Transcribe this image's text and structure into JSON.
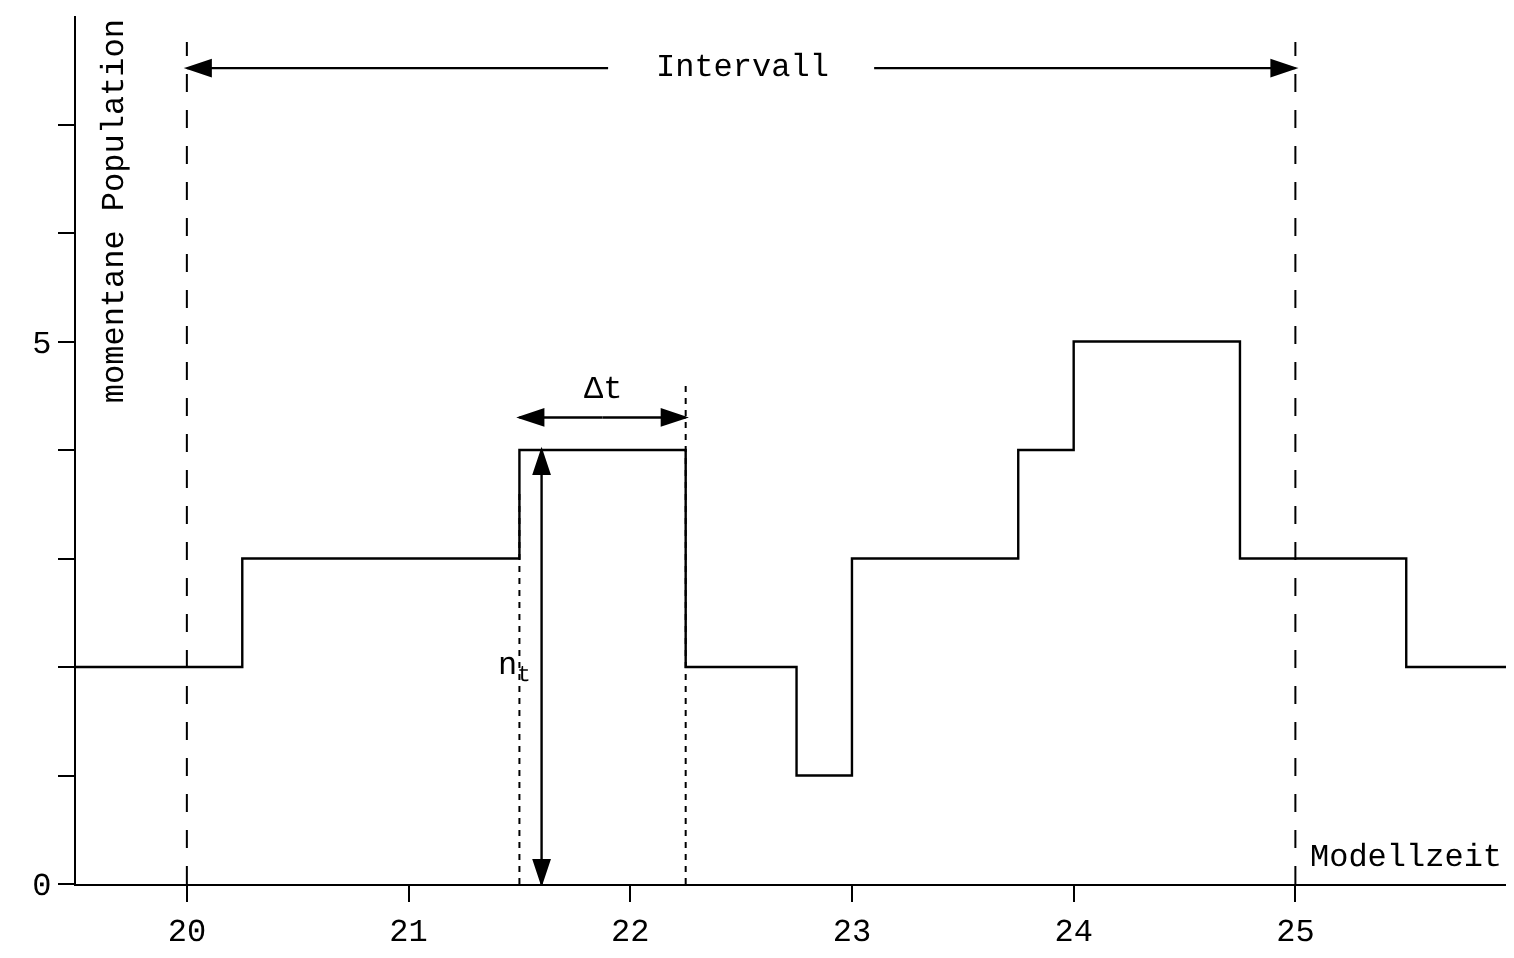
{
  "chart_data": {
    "type": "step",
    "xlabel": "Modellzeit",
    "ylabel": "momentane Population",
    "x": [
      19.5,
      20.25,
      21.5,
      22.25,
      22.75,
      23.0,
      23.75,
      24.0,
      24.75,
      25.5,
      25.95
    ],
    "series": [
      {
        "color": "#000000",
        "values": [
          2,
          3,
          4,
          2,
          1,
          3,
          4,
          5,
          3,
          2,
          2
        ]
      }
    ],
    "xlim": [
      19.5,
      25.95
    ],
    "xticks": [
      20,
      21,
      22,
      23,
      24,
      25
    ],
    "ylim": [
      0,
      8
    ],
    "yticks": [
      0,
      {
        "value": 1,
        "label": null
      },
      {
        "value": 2,
        "label": null
      },
      {
        "value": 3,
        "label": null
      },
      {
        "value": 4,
        "label": null
      },
      5,
      {
        "value": 6,
        "label": null
      },
      {
        "value": 7,
        "label": null
      }
    ],
    "ref_lines": [
      {
        "axis": "x",
        "value": 20,
        "line_style": "dashed",
        "color": "#000000"
      },
      {
        "axis": "x",
        "value": 25,
        "line_style": "dashed",
        "color": "#000000"
      },
      {
        "axis": "x",
        "value": 21.5,
        "line_style": "dotted",
        "color": "#000000"
      },
      {
        "axis": "x",
        "value": 22.25,
        "line_style": "dotted",
        "color": "#000000"
      }
    ],
    "annotations": [
      "Intervall",
      {
        "text": "Δt",
        "x": 22.25,
        "y": 4
      },
      {
        "text": "n$_{t}$",
        "x": 21.6,
        "y": 4
      }
    ],
    "legend": false,
    "marker": "none",
    "line_style": "solid"
  }
}
